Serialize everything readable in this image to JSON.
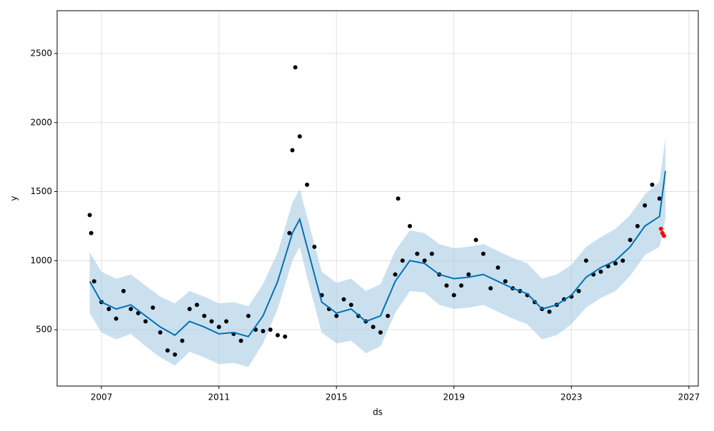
{
  "chart_data": {
    "type": "forecast",
    "xlabel": "ds",
    "ylabel": "y",
    "xlim": [
      2005.49,
      2027.32
    ],
    "xticks": [
      2007,
      2011,
      2015,
      2019,
      2023,
      2027
    ],
    "ylim": [
      92,
      2810
    ],
    "yticks": [
      500,
      1000,
      1500,
      2000,
      2500
    ],
    "grid": true,
    "forecast": {
      "color": "#0072b2",
      "band_color": "#a6cce4",
      "x": [
        2006.6,
        2007,
        2007.5,
        2008,
        2008.5,
        2009,
        2009.5,
        2010,
        2010.5,
        2011,
        2011.5,
        2012,
        2012.5,
        2013,
        2013.5,
        2013.75,
        2014,
        2014.5,
        2015,
        2015.5,
        2016,
        2016.5,
        2017,
        2017.5,
        2018,
        2018.5,
        2019,
        2019.5,
        2020,
        2020.5,
        2021,
        2021.5,
        2022,
        2022.5,
        2023,
        2023.5,
        2024,
        2024.5,
        2025,
        2025.5,
        2026,
        2026.2
      ],
      "values": [
        850,
        700,
        650,
        680,
        600,
        520,
        460,
        560,
        520,
        470,
        480,
        450,
        600,
        850,
        1200,
        1300,
        1100,
        700,
        620,
        650,
        560,
        600,
        850,
        1000,
        980,
        900,
        870,
        880,
        900,
        850,
        800,
        760,
        650,
        680,
        750,
        880,
        950,
        1000,
        1100,
        1250,
        1320,
        1650
      ],
      "lower": [
        620,
        480,
        430,
        470,
        380,
        300,
        240,
        340,
        300,
        250,
        260,
        230,
        400,
        650,
        1000,
        1100,
        880,
        480,
        400,
        420,
        330,
        380,
        620,
        780,
        770,
        680,
        650,
        660,
        680,
        630,
        580,
        540,
        430,
        460,
        540,
        660,
        730,
        780,
        890,
        1040,
        1100,
        1300
      ],
      "upper": [
        1060,
        920,
        870,
        900,
        820,
        740,
        690,
        780,
        740,
        690,
        700,
        670,
        830,
        1060,
        1420,
        1520,
        1320,
        920,
        840,
        870,
        780,
        830,
        1070,
        1220,
        1200,
        1120,
        1090,
        1100,
        1120,
        1070,
        1020,
        980,
        870,
        900,
        970,
        1100,
        1170,
        1230,
        1330,
        1480,
        1570,
        1890
      ]
    },
    "points": {
      "color": "#000000",
      "x": [
        2006.6,
        2006.65,
        2006.75,
        2007,
        2007.25,
        2007.5,
        2007.75,
        2008,
        2008.25,
        2008.5,
        2008.75,
        2009,
        2009.25,
        2009.5,
        2009.75,
        2010,
        2010.25,
        2010.5,
        2010.75,
        2011,
        2011.25,
        2011.5,
        2011.75,
        2012,
        2012.25,
        2012.5,
        2012.75,
        2013,
        2013.25,
        2013.4,
        2013.5,
        2013.6,
        2013.75,
        2014,
        2014.25,
        2014.5,
        2014.75,
        2015,
        2015.25,
        2015.5,
        2015.75,
        2016,
        2016.25,
        2016.5,
        2016.75,
        2017,
        2017.1,
        2017.25,
        2017.5,
        2017.75,
        2018,
        2018.25,
        2018.5,
        2018.75,
        2019,
        2019.25,
        2019.5,
        2019.75,
        2020,
        2020.25,
        2020.5,
        2020.75,
        2021,
        2021.25,
        2021.5,
        2021.75,
        2022,
        2022.25,
        2022.5,
        2022.75,
        2023,
        2023.25,
        2023.5,
        2023.75,
        2024,
        2024.25,
        2024.5,
        2024.75,
        2025,
        2025.25,
        2025.5,
        2025.75,
        2026
      ],
      "values": [
        1330,
        1200,
        850,
        700,
        650,
        580,
        780,
        650,
        620,
        560,
        660,
        480,
        350,
        320,
        420,
        650,
        680,
        600,
        560,
        520,
        560,
        470,
        420,
        600,
        500,
        490,
        500,
        460,
        450,
        1200,
        1800,
        2400,
        1900,
        1550,
        1100,
        750,
        650,
        600,
        720,
        680,
        600,
        560,
        520,
        480,
        600,
        900,
        1450,
        1000,
        1250,
        1050,
        1000,
        1050,
        900,
        820,
        750,
        820,
        900,
        1150,
        1050,
        800,
        950,
        850,
        800,
        780,
        750,
        700,
        650,
        630,
        680,
        720,
        740,
        780,
        1000,
        900,
        920,
        960,
        980,
        1000,
        1150,
        1250,
        1400,
        1550,
        1450
      ]
    },
    "test_points": {
      "color": "#ff0000",
      "x": [
        2026.05,
        2026.1,
        2026.15
      ],
      "values": [
        1230,
        1200,
        1180
      ]
    }
  }
}
